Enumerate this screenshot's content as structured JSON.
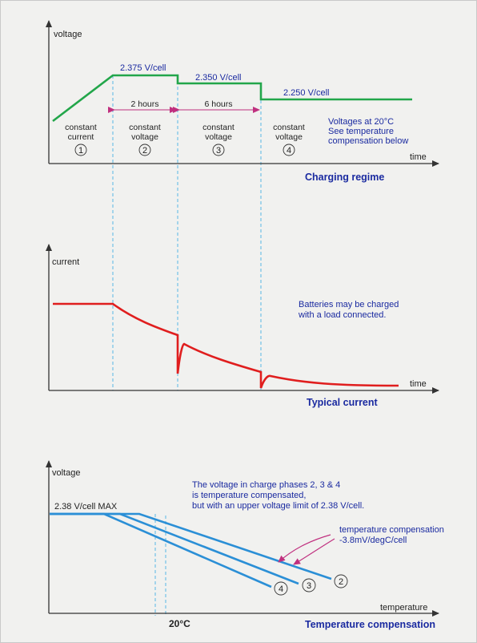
{
  "colors": {
    "voltage_line": "#22a64a",
    "current_line": "#e01e1e",
    "temperature_line": "#2b8fd6",
    "axis": "#333333",
    "arrow": "#c0307f",
    "dashed": "#58b8e4",
    "title": "#1a2aa0",
    "background": "#f1f1ef"
  },
  "charging_regime": {
    "y_label": "voltage",
    "x_label": "time",
    "title": "Charging regime",
    "levels": [
      "2.375 V/cell",
      "2.350 V/cell",
      "2.250 V/cell"
    ],
    "durations": [
      "2 hours",
      "6 hours"
    ],
    "phases": [
      {
        "line1": "constant",
        "line2": "current",
        "num": "1"
      },
      {
        "line1": "constant",
        "line2": "voltage",
        "num": "2"
      },
      {
        "line1": "constant",
        "line2": "voltage",
        "num": "3"
      },
      {
        "line1": "constant",
        "line2": "voltage",
        "num": "4"
      }
    ],
    "note": [
      "Voltages at 20°C",
      "See temperature",
      "compensation below"
    ]
  },
  "typical_current": {
    "y_label": "current",
    "x_label": "time",
    "title": "Typical current",
    "note": [
      "Batteries may be charged",
      "with a load connected."
    ]
  },
  "temperature_compensation": {
    "y_label": "voltage",
    "x_label": "temperature",
    "title": "Temperature compensation",
    "max_label": "2.38 V/cell MAX",
    "note": [
      "The voltage in charge phases 2, 3 & 4",
      "is temperature compensated,",
      "but with an upper voltage limit of 2.38 V/cell."
    ],
    "comp_label": [
      "temperature compensation",
      "-3.8mV/degC/cell"
    ],
    "temp_marker": "20°C",
    "line_numbers": [
      "4",
      "3",
      "2"
    ]
  }
}
